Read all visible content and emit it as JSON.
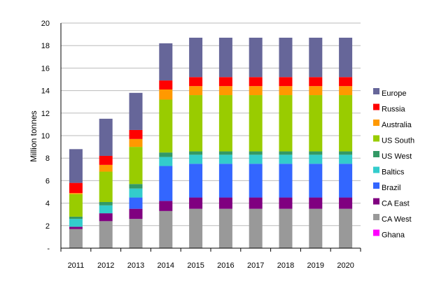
{
  "chart_data": {
    "type": "bar",
    "stacked": true,
    "ylabel": "Million tonnes",
    "ylim": [
      0,
      20
    ],
    "yticks": [
      {
        "value": 0,
        "label": "-"
      },
      {
        "value": 2,
        "label": "2"
      },
      {
        "value": 4,
        "label": "4"
      },
      {
        "value": 6,
        "label": "6"
      },
      {
        "value": 8,
        "label": "8"
      },
      {
        "value": 10,
        "label": "10"
      },
      {
        "value": 12,
        "label": "12"
      },
      {
        "value": 14,
        "label": "14"
      },
      {
        "value": 16,
        "label": "16"
      },
      {
        "value": 18,
        "label": "18"
      },
      {
        "value": 20,
        "label": "20"
      }
    ],
    "grid": true,
    "legend_position": "right",
    "categories": [
      "2011",
      "2012",
      "2013",
      "2014",
      "2015",
      "2016",
      "2017",
      "2018",
      "2019",
      "2020"
    ],
    "series": [
      {
        "name": "Ghana",
        "color": "#ff00ff",
        "values": [
          0,
          0,
          0,
          0,
          0,
          0,
          0,
          0,
          0,
          0
        ]
      },
      {
        "name": "CA West",
        "color": "#999999",
        "values": [
          1.7,
          2.4,
          2.6,
          3.3,
          3.5,
          3.5,
          3.5,
          3.5,
          3.5,
          3.5
        ]
      },
      {
        "name": "CA East",
        "color": "#800080",
        "values": [
          0.2,
          0.7,
          0.9,
          0.9,
          1.0,
          1.0,
          1.0,
          1.0,
          1.0,
          1.0
        ]
      },
      {
        "name": "Brazil",
        "color": "#3366ff",
        "values": [
          0,
          0,
          1.0,
          3.1,
          3.0,
          3.0,
          3.0,
          3.0,
          3.0,
          3.0
        ]
      },
      {
        "name": "Baltics",
        "color": "#33cccc",
        "values": [
          0.7,
          0.7,
          0.8,
          0.8,
          0.8,
          0.8,
          0.8,
          0.8,
          0.8,
          0.8
        ]
      },
      {
        "name": "US West",
        "color": "#339966",
        "values": [
          0.2,
          0.3,
          0.4,
          0.4,
          0.3,
          0.3,
          0.3,
          0.3,
          0.3,
          0.3
        ]
      },
      {
        "name": "US South",
        "color": "#99cc00",
        "values": [
          2.0,
          2.7,
          3.3,
          4.7,
          5.0,
          5.0,
          5.0,
          5.0,
          5.0,
          5.0
        ]
      },
      {
        "name": "Australia",
        "color": "#ff9900",
        "values": [
          0.1,
          0.6,
          0.7,
          0.9,
          0.8,
          0.8,
          0.8,
          0.8,
          0.8,
          0.8
        ]
      },
      {
        "name": "Russia",
        "color": "#ff0000",
        "values": [
          0.9,
          0.8,
          0.8,
          0.8,
          0.8,
          0.8,
          0.8,
          0.8,
          0.8,
          0.8
        ]
      },
      {
        "name": "Europe",
        "color": "#666699",
        "values": [
          3.0,
          3.3,
          3.3,
          3.3,
          3.5,
          3.5,
          3.5,
          3.5,
          3.5,
          3.5
        ]
      }
    ],
    "legend_order": [
      "Europe",
      "Russia",
      "Australia",
      "US South",
      "US West",
      "Baltics",
      "Brazil",
      "CA East",
      "CA West",
      "Ghana"
    ]
  }
}
